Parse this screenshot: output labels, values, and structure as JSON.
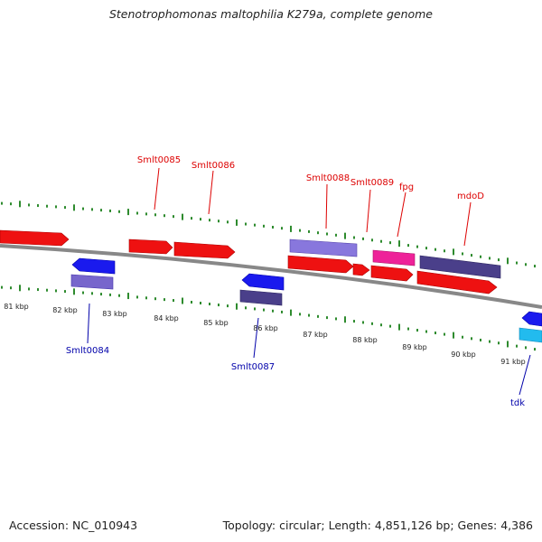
{
  "title": "Stenotrophomonas maltophilia K279a, complete genome",
  "footer": {
    "accession": "Accession: NC_010943",
    "stats": "Topology: circular; Length: 4,851,126 bp; Genes: 4,386"
  },
  "colors": {
    "forward_cds": "#ee1111",
    "reverse_cds": "#1a1aee",
    "forward_gene": "#8877dd",
    "forward_gene_dark": "#4a3f8a",
    "reverse_gene_light": "#7766cc",
    "reverse_gene_dark": "#4a3f8a",
    "misc_pink": "#ee2299",
    "cyan_gene": "#22bbee",
    "backbone": "#777777",
    "forward_tick": "#2e8b2e",
    "forward_label": "#dd0000",
    "reverse_label": "#0000aa",
    "axis_label": "#222222"
  },
  "ruler": [
    "81 kbp",
    "82 kbp",
    "83 kbp",
    "84 kbp",
    "85 kbp",
    "86 kbp",
    "87 kbp",
    "88 kbp",
    "89 kbp",
    "90 kbp",
    "91 kbp"
  ],
  "forward_labels": [
    "Smlt0085",
    "Smlt0086",
    "Smlt0088",
    "Smlt0089",
    "fpg",
    "mdoD"
  ],
  "reverse_labels": [
    "Smlt0084",
    "Smlt0087",
    "tdk"
  ]
}
